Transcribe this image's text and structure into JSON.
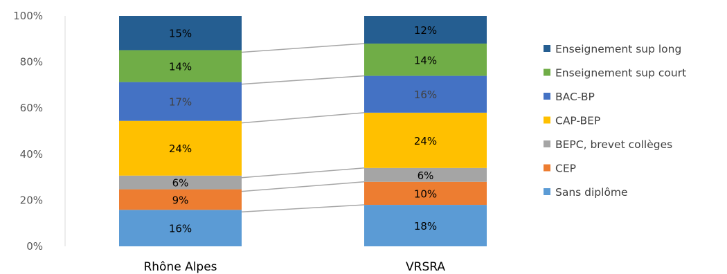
{
  "chart_data": {
    "type": "bar",
    "stacked": true,
    "percent": true,
    "categories": [
      "Rhône Alpes",
      "VRSRA"
    ],
    "y_ticks": [
      "0%",
      "20%",
      "40%",
      "60%",
      "80%",
      "100%"
    ],
    "ylim": [
      0,
      100
    ],
    "grid": false,
    "legend_position": "right",
    "series": [
      {
        "name": "Sans diplôme",
        "values": [
          16,
          18
        ],
        "labels": [
          "16%",
          "18%"
        ],
        "color": "#5b9bd5",
        "label_color": "#000000"
      },
      {
        "name": "CEP",
        "values": [
          9,
          10
        ],
        "labels": [
          "9%",
          "10%"
        ],
        "color": "#ed7d31",
        "label_color": "#000000"
      },
      {
        "name": "BEPC, brevet collèges",
        "values": [
          6,
          6
        ],
        "labels": [
          "6%",
          "6%"
        ],
        "color": "#a5a5a5",
        "label_color": "#000000"
      },
      {
        "name": "CAP-BEP",
        "values": [
          24,
          24
        ],
        "labels": [
          "24%",
          "24%"
        ],
        "color": "#ffc000",
        "label_color": "#000000"
      },
      {
        "name": "BAC-BP",
        "values": [
          17,
          16
        ],
        "labels": [
          "17%",
          "16%"
        ],
        "color": "#4472c4",
        "label_color": "#404040"
      },
      {
        "name": "Enseignement sup court",
        "values": [
          14,
          14
        ],
        "labels": [
          "14%",
          "14%"
        ],
        "color": "#70ad47",
        "label_color": "#000000"
      },
      {
        "name": "Enseignement sup long",
        "values": [
          15,
          12
        ],
        "labels": [
          "15%",
          "12%"
        ],
        "color": "#255e91",
        "label_color": "#000000"
      }
    ]
  }
}
